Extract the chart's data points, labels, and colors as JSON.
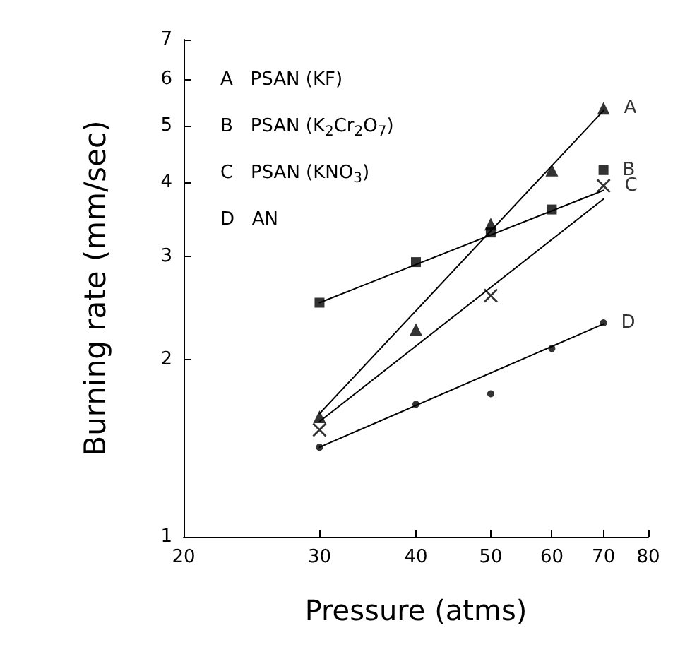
{
  "chart_data": {
    "type": "scatter",
    "xlabel": "Pressure (atms)",
    "ylabel": "Burning rate (mm/sec)",
    "log": "xy",
    "xlim": [
      20,
      80
    ],
    "xticks": [
      20,
      30,
      40,
      50,
      60,
      70,
      80
    ],
    "ylim": [
      1,
      7
    ],
    "yticks": [
      1,
      2,
      3,
      4,
      5,
      6,
      7
    ],
    "grid": false,
    "legend": false,
    "annotations": [
      "A   PSAN (KF)",
      "B   PSAN (K$_{2}$Cr$_{2}$O$_{7}$)",
      "C   PSAN (KNO$_{3}$)",
      "D   AN"
    ],
    "series": [
      {
        "name": "A",
        "color": "#000000",
        "marker": "triangle",
        "x": [
          30,
          40,
          50,
          60,
          70
        ],
        "values": [
          1.6,
          2.25,
          3.4,
          4.2,
          5.35
        ]
      },
      {
        "name": "B",
        "color": "#000000",
        "marker": "square",
        "x": [
          30,
          40,
          50,
          60,
          70
        ],
        "values": [
          2.5,
          2.93,
          3.29,
          3.6,
          4.2
        ]
      },
      {
        "name": "C",
        "color": "#000000",
        "marker": "cross",
        "x": [
          30,
          50,
          70
        ],
        "values": [
          1.52,
          2.57,
          3.95
        ]
      },
      {
        "name": "D",
        "color": "#000000",
        "marker": "circle",
        "x": [
          30,
          40,
          50,
          60,
          70
        ],
        "values": [
          1.42,
          1.68,
          1.75,
          2.09,
          2.31
        ]
      },
      {
        "type": "line",
        "color": "#000000",
        "marker": "none",
        "line_style": "solid",
        "x": [
          30,
          70
        ],
        "values": [
          1.62,
          5.3
        ]
      },
      {
        "type": "line",
        "color": "#000000",
        "marker": "none",
        "line_style": "solid",
        "x": [
          30,
          70
        ],
        "values": [
          2.5,
          3.88
        ]
      },
      {
        "type": "line",
        "color": "#000000",
        "marker": "none",
        "line_style": "solid",
        "x": [
          30,
          70
        ],
        "values": [
          1.57,
          3.75
        ]
      },
      {
        "type": "line",
        "color": "#000000",
        "marker": "none",
        "line_style": "solid",
        "x": [
          30,
          70
        ],
        "values": [
          1.42,
          2.3
        ]
      }
    ]
  }
}
